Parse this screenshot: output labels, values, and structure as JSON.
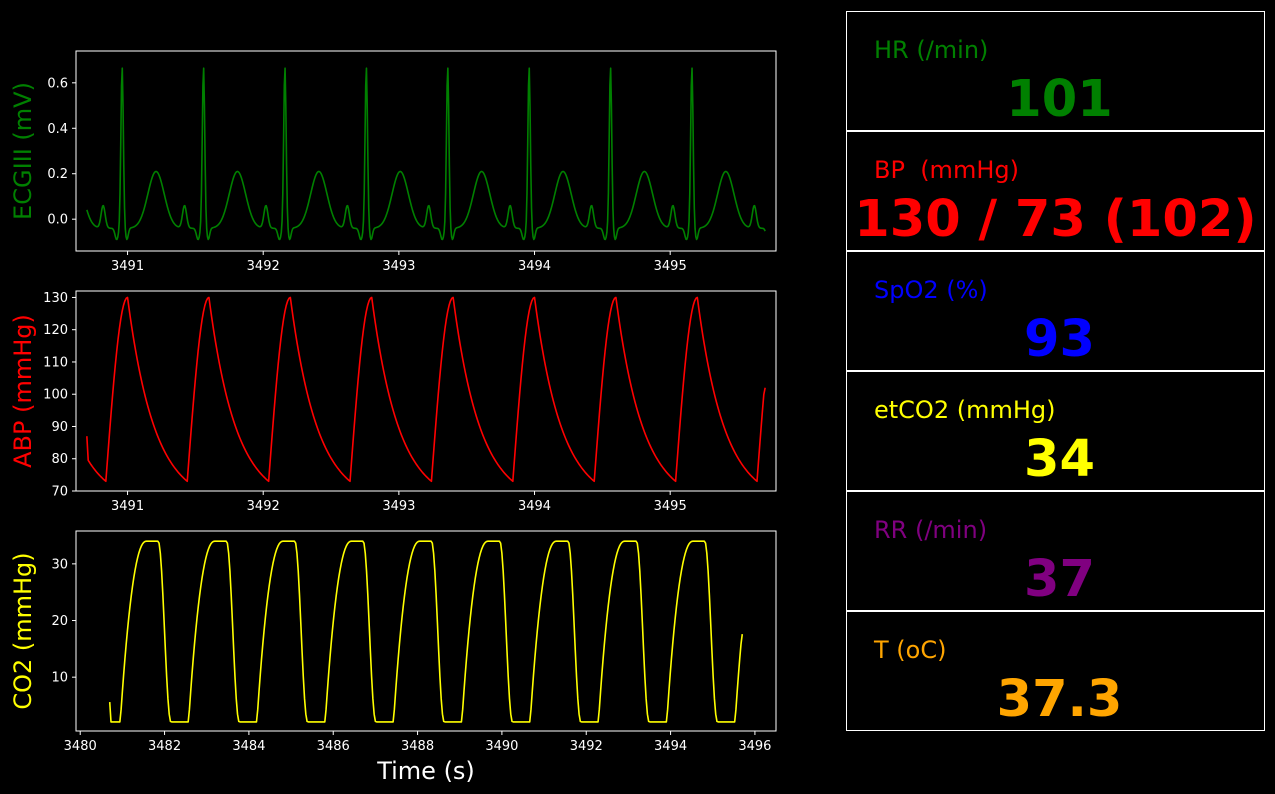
{
  "chart_data": [
    {
      "type": "line",
      "title": "",
      "xlabel": "",
      "ylabel": "ECGIII (mV)",
      "color": "#008000",
      "xlim": [
        3490.62,
        3495.78
      ],
      "ylim": [
        -0.14,
        0.74
      ],
      "xticks": [
        3491,
        3492,
        3493,
        3494,
        3495
      ],
      "yticks": [
        0.0,
        0.2,
        0.4,
        0.6
      ],
      "ytick_labels": [
        "0.0",
        "0.2",
        "0.4",
        "0.6"
      ],
      "series": [
        {
          "x_start": 3490.7,
          "x_end": 3495.7,
          "beat_period": 0.6,
          "first_r_peak": 3490.96,
          "r_peak_mV": 0.67,
          "t_wave_mV": 0.21,
          "p_wave_mV": 0.06,
          "s_trough_mV": -0.09,
          "baseline_mV": -0.04
        }
      ]
    },
    {
      "type": "line",
      "title": "",
      "xlabel": "",
      "ylabel": "ABP (mmHg)",
      "color": "#ff0000",
      "xlim": [
        3490.62,
        3495.78
      ],
      "ylim": [
        70,
        132
      ],
      "xticks": [
        3491,
        3492,
        3493,
        3494,
        3495
      ],
      "yticks": [
        70,
        80,
        90,
        100,
        110,
        120,
        130
      ],
      "series": [
        {
          "x_start": 3490.7,
          "x_end": 3495.7,
          "beat_period": 0.6,
          "first_systolic_peak": 3491.0,
          "systolic": 130,
          "diastolic": 73,
          "start_value": 87,
          "end_value": 102
        }
      ]
    },
    {
      "type": "line",
      "title": "",
      "xlabel": "Time (s)",
      "ylabel": "CO2 (mmHg)",
      "color": "#ffff00",
      "xlim": [
        3479.9,
        3496.5
      ],
      "ylim": [
        0.5,
        35.8
      ],
      "xticks": [
        3480,
        3482,
        3484,
        3486,
        3488,
        3490,
        3492,
        3494,
        3496
      ],
      "yticks": [
        10,
        20,
        30
      ],
      "series": [
        {
          "x_start": 3480.7,
          "x_end": 3495.7,
          "breath_period": 1.62,
          "first_minimum": 3480.95,
          "min_value": 2.1,
          "max_value": 34,
          "start_value": 5.6,
          "end_value": 17.6
        }
      ]
    }
  ],
  "vitals": {
    "hr": {
      "label": "HR (/min)",
      "value": "101",
      "color": "#008000"
    },
    "bp": {
      "label": "BP  (mmHg)",
      "value": "130 / 73 (102)",
      "color": "#ff0000"
    },
    "spo2": {
      "label": "SpO2 (%)",
      "value": "93",
      "color": "#0000ff"
    },
    "etco2": {
      "label": "etCO2 (mmHg)",
      "value": "34",
      "color": "#ffff00"
    },
    "rr": {
      "label": "RR (/min)",
      "value": "37",
      "color": "#800080"
    },
    "temp": {
      "label": "T (oC)",
      "value": "37.3",
      "color": "#ffa500"
    }
  }
}
